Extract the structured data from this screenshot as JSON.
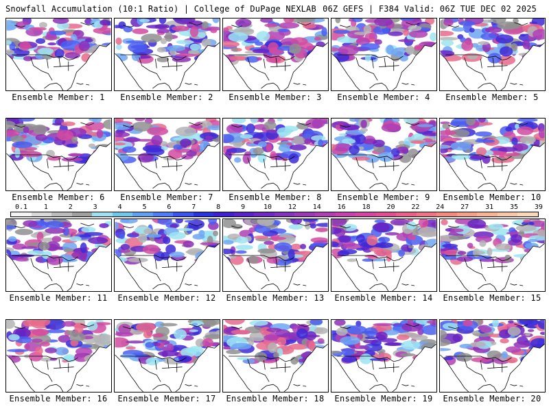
{
  "header": {
    "left_title": "Snowfall Accumulation (10:1 Ratio) | College of DuPage NEXLAB",
    "right_title": "06Z GEFS | F384 Valid: 06Z TUE DEC 02 2025"
  },
  "panels": [
    {
      "member": 1,
      "label": "Ensemble Member: 1"
    },
    {
      "member": 2,
      "label": "Ensemble Member: 2"
    },
    {
      "member": 3,
      "label": "Ensemble Member: 3"
    },
    {
      "member": 4,
      "label": "Ensemble Member: 4"
    },
    {
      "member": 5,
      "label": "Ensemble Member: 5"
    },
    {
      "member": 6,
      "label": "Ensemble Member: 6"
    },
    {
      "member": 7,
      "label": "Ensemble Member: 7"
    },
    {
      "member": 8,
      "label": "Ensemble Member: 8"
    },
    {
      "member": 9,
      "label": "Ensemble Member: 9"
    },
    {
      "member": 10,
      "label": "Ensemble Member: 10"
    },
    {
      "member": 11,
      "label": "Ensemble Member: 11"
    },
    {
      "member": 12,
      "label": "Ensemble Member: 12"
    },
    {
      "member": 13,
      "label": "Ensemble Member: 13"
    },
    {
      "member": 14,
      "label": "Ensemble Member: 14"
    },
    {
      "member": 15,
      "label": "Ensemble Member: 15"
    },
    {
      "member": 16,
      "label": "Ensemble Member: 16"
    },
    {
      "member": 17,
      "label": "Ensemble Member: 17"
    },
    {
      "member": 18,
      "label": "Ensemble Member: 18"
    },
    {
      "member": 19,
      "label": "Ensemble Member: 19"
    },
    {
      "member": 20,
      "label": "Ensemble Member: 20"
    }
  ],
  "colorbar": {
    "tick_labels": [
      "0.1",
      "1",
      "2",
      "3",
      "4",
      "5",
      "6",
      "7",
      "8",
      "9",
      "10",
      "12",
      "14",
      "16",
      "18",
      "20",
      "22",
      "24",
      "27",
      "31",
      "35",
      "39"
    ],
    "colors": [
      "#f4f4f4",
      "#d8d8d8",
      "#bcbcbc",
      "#a0a0a0",
      "#9fe0f0",
      "#6fc7ea",
      "#5fa0ef",
      "#4f7df5",
      "#3b56f0",
      "#2a33e0",
      "#3f1fd0",
      "#5a22c8",
      "#6e2ac2",
      "#8434bc",
      "#9a3ab8",
      "#b03fb4",
      "#c443ae",
      "#d447a2",
      "#e04f96",
      "#e8608c",
      "#ee7585",
      "#f28a82",
      "#f4a08a",
      "#f6b495",
      "#f7c8a8",
      "#fad8bc"
    ]
  }
}
